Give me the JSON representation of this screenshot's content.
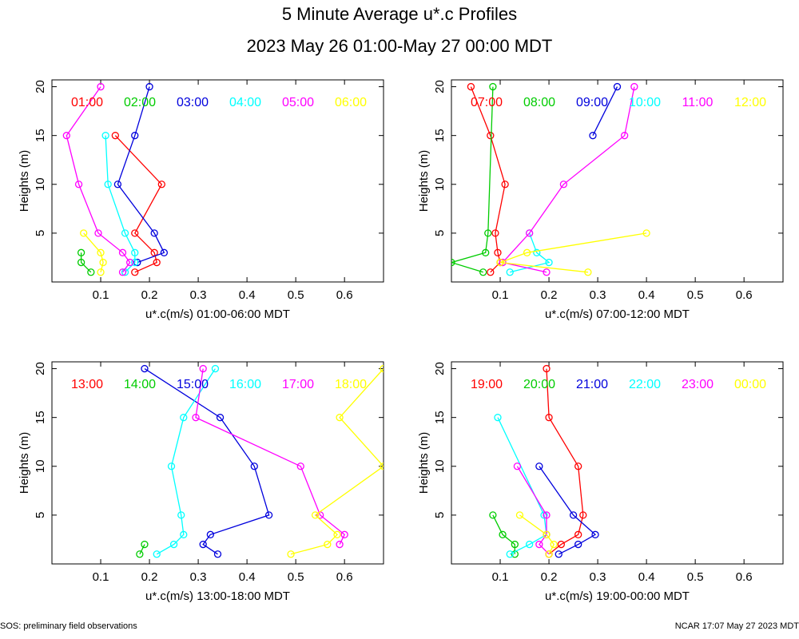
{
  "title": {
    "line1": "5 Minute Average u*.c Profiles",
    "line2": "2023 May 26 01:00-May 27 00:00 MDT"
  },
  "footer": {
    "left": "SOS: preliminary field observations",
    "right": "NCAR 17:07 May 27 2023 MDT"
  },
  "colors": {
    "red": "#ff0000",
    "green": "#00cc00",
    "blue": "#0000dd",
    "cyan": "#00ffff",
    "magenta": "#ff00ff",
    "yellow": "#ffff00"
  },
  "chart_data": [
    {
      "type": "line",
      "xlabel": "u*.c(m/s) 01:00-06:00 MDT",
      "ylabel": "Heights (m)",
      "xlim": [
        0.0,
        0.68
      ],
      "ylim": [
        0,
        20.7
      ],
      "xticks": [
        "0.1",
        "0.2",
        "0.3",
        "0.4",
        "0.5",
        "0.6"
      ],
      "yticks": [
        "5",
        "10",
        "15",
        "20"
      ],
      "series": [
        {
          "name": "01:00",
          "color": "#ff0000",
          "points": [
            [
              0.17,
              1
            ],
            [
              0.215,
              2
            ],
            [
              0.21,
              3
            ],
            [
              0.17,
              5
            ],
            [
              0.225,
              10
            ],
            [
              0.13,
              15
            ]
          ]
        },
        {
          "name": "02:00",
          "color": "#00cc00",
          "points": [
            [
              0.08,
              1
            ],
            [
              0.06,
              2
            ],
            [
              0.06,
              3
            ]
          ]
        },
        {
          "name": "03:00",
          "color": "#0000dd",
          "points": [
            [
              0.175,
              2
            ],
            [
              0.23,
              3
            ],
            [
              0.21,
              5
            ],
            [
              0.135,
              10
            ],
            [
              0.17,
              15
            ],
            [
              0.2,
              20
            ]
          ]
        },
        {
          "name": "04:00",
          "color": "#00ffff",
          "points": [
            [
              0.15,
              1
            ],
            [
              0.17,
              2
            ],
            [
              0.17,
              3
            ],
            [
              0.15,
              5
            ],
            [
              0.115,
              10
            ],
            [
              0.11,
              15
            ]
          ]
        },
        {
          "name": "05:00",
          "color": "#ff00ff",
          "points": [
            [
              0.145,
              1
            ],
            [
              0.16,
              2
            ],
            [
              0.145,
              3
            ],
            [
              0.095,
              5
            ],
            [
              0.055,
              10
            ],
            [
              0.03,
              15
            ],
            [
              0.1,
              20
            ]
          ]
        },
        {
          "name": "06:00",
          "color": "#ffff00",
          "points": [
            [
              0.1,
              1
            ],
            [
              0.105,
              2
            ],
            [
              0.1,
              3
            ],
            [
              0.065,
              5
            ]
          ]
        }
      ]
    },
    {
      "type": "line",
      "xlabel": "u*.c(m/s) 07:00-12:00 MDT",
      "ylabel": "Heights (m)",
      "xlim": [
        0.0,
        0.68
      ],
      "ylim": [
        0,
        20.7
      ],
      "xticks": [
        "0.1",
        "0.2",
        "0.3",
        "0.4",
        "0.5",
        "0.6"
      ],
      "yticks": [
        "5",
        "10",
        "15",
        "20"
      ],
      "series": [
        {
          "name": "07:00",
          "color": "#ff0000",
          "points": [
            [
              0.08,
              1
            ],
            [
              0.1,
              2
            ],
            [
              0.095,
              3
            ],
            [
              0.09,
              5
            ],
            [
              0.11,
              10
            ],
            [
              0.08,
              15
            ],
            [
              0.04,
              20
            ]
          ]
        },
        {
          "name": "08:00",
          "color": "#00cc00",
          "points": [
            [
              0.065,
              1
            ],
            [
              0.0,
              2
            ],
            [
              0.07,
              3
            ],
            [
              0.075,
              5
            ],
            [
              0.085,
              20
            ]
          ]
        },
        {
          "name": "09:00",
          "color": "#0000dd",
          "points": [
            [
              0.29,
              15
            ],
            [
              0.34,
              20
            ]
          ]
        },
        {
          "name": "10:00",
          "color": "#00ffff",
          "points": [
            [
              0.12,
              1
            ],
            [
              0.2,
              2
            ],
            [
              0.175,
              3
            ],
            [
              0.16,
              5
            ]
          ]
        },
        {
          "name": "11:00",
          "color": "#ff00ff",
          "points": [
            [
              0.195,
              1
            ],
            [
              0.105,
              2
            ],
            [
              0.16,
              5
            ],
            [
              0.23,
              10
            ],
            [
              0.355,
              15
            ],
            [
              0.375,
              20
            ]
          ]
        },
        {
          "name": "12:00",
          "color": "#ffff00",
          "points": [
            [
              0.28,
              1
            ],
            [
              0.1,
              2
            ],
            [
              0.155,
              3
            ],
            [
              0.4,
              5
            ]
          ]
        }
      ]
    },
    {
      "type": "line",
      "xlabel": "u*.c(m/s) 13:00-18:00 MDT",
      "ylabel": "Heights (m)",
      "xlim": [
        0.0,
        0.68
      ],
      "ylim": [
        0,
        20.7
      ],
      "xticks": [
        "0.1",
        "0.2",
        "0.3",
        "0.4",
        "0.5",
        "0.6"
      ],
      "yticks": [
        "5",
        "10",
        "15",
        "20"
      ],
      "series": [
        {
          "name": "13:00",
          "color": "#ff0000",
          "points": []
        },
        {
          "name": "14:00",
          "color": "#00cc00",
          "points": [
            [
              0.18,
              1
            ],
            [
              0.19,
              2
            ]
          ]
        },
        {
          "name": "15:00",
          "color": "#0000dd",
          "points": [
            [
              0.34,
              1
            ],
            [
              0.31,
              2
            ],
            [
              0.325,
              3
            ],
            [
              0.445,
              5
            ],
            [
              0.415,
              10
            ],
            [
              0.345,
              15
            ],
            [
              0.19,
              20
            ]
          ]
        },
        {
          "name": "16:00",
          "color": "#00ffff",
          "points": [
            [
              0.215,
              1
            ],
            [
              0.25,
              2
            ],
            [
              0.27,
              3
            ],
            [
              0.265,
              5
            ],
            [
              0.245,
              10
            ],
            [
              0.27,
              15
            ],
            [
              0.335,
              20
            ]
          ]
        },
        {
          "name": "17:00",
          "color": "#ff00ff",
          "points": [
            [
              0.59,
              2
            ],
            [
              0.6,
              3
            ],
            [
              0.55,
              5
            ],
            [
              0.51,
              10
            ],
            [
              0.295,
              15
            ],
            [
              0.31,
              20
            ]
          ]
        },
        {
          "name": "18:00",
          "color": "#ffff00",
          "points": [
            [
              0.49,
              1
            ],
            [
              0.565,
              2
            ],
            [
              0.585,
              3
            ],
            [
              0.54,
              5
            ],
            [
              0.68,
              10
            ],
            [
              0.59,
              15
            ],
            [
              0.68,
              20
            ]
          ]
        }
      ]
    },
    {
      "type": "line",
      "xlabel": "u*.c(m/s) 19:00-00:00 MDT",
      "ylabel": "Heights (m)",
      "xlim": [
        0.0,
        0.68
      ],
      "ylim": [
        0,
        20.7
      ],
      "xticks": [
        "0.1",
        "0.2",
        "0.3",
        "0.4",
        "0.5",
        "0.6"
      ],
      "yticks": [
        "5",
        "10",
        "15",
        "20"
      ],
      "series": [
        {
          "name": "19:00",
          "color": "#ff0000",
          "points": [
            [
              0.2,
              1
            ],
            [
              0.225,
              2
            ],
            [
              0.26,
              3
            ],
            [
              0.27,
              5
            ],
            [
              0.26,
              10
            ],
            [
              0.2,
              15
            ],
            [
              0.195,
              20
            ]
          ]
        },
        {
          "name": "20:00",
          "color": "#00cc00",
          "points": [
            [
              0.13,
              1
            ],
            [
              0.13,
              2
            ],
            [
              0.105,
              3
            ],
            [
              0.085,
              5
            ]
          ]
        },
        {
          "name": "21:00",
          "color": "#0000dd",
          "points": [
            [
              0.22,
              1
            ],
            [
              0.26,
              2
            ],
            [
              0.295,
              3
            ],
            [
              0.25,
              5
            ],
            [
              0.18,
              10
            ]
          ]
        },
        {
          "name": "22:00",
          "color": "#00ffff",
          "points": [
            [
              0.12,
              1
            ],
            [
              0.16,
              2
            ],
            [
              0.195,
              3
            ],
            [
              0.19,
              5
            ],
            [
              0.095,
              15
            ]
          ]
        },
        {
          "name": "23:00",
          "color": "#ff00ff",
          "points": [
            [
              0.2,
              1
            ],
            [
              0.18,
              2
            ],
            [
              0.195,
              3
            ],
            [
              0.195,
              5
            ],
            [
              0.135,
              10
            ]
          ]
        },
        {
          "name": "00:00",
          "color": "#ffff00",
          "points": [
            [
              0.2,
              1
            ],
            [
              0.21,
              2
            ],
            [
              0.195,
              3
            ],
            [
              0.14,
              5
            ]
          ]
        }
      ]
    }
  ]
}
